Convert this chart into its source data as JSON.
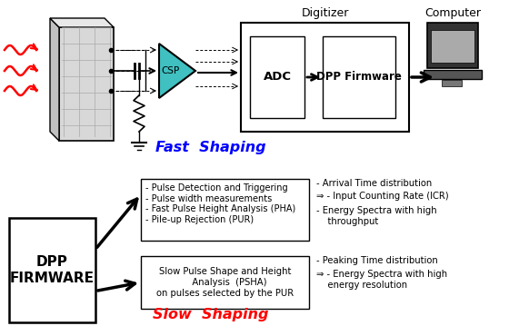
{
  "bg_color": "#ffffff",
  "digitizer_label": "Digitizer",
  "computer_label": "Computer",
  "adc_label": "ADC",
  "dpp_fw_label": "DPP Firmware",
  "csp_label": "CSP",
  "fast_shaping_label": "Fast  Shaping",
  "slow_shaping_label": "Slow  Shaping",
  "dpp_firmware_box_label": "DPP\nFIRMWARE",
  "fast_box_text": "- Pulse Detection and Triggering\n- Pulse width measurements\n- Fast Pulse Height Analysis (PHA)\n- Pile-up Rejection (PUR)",
  "slow_box_text": "Slow Pulse Shape and Height\n   Analysis  (PSHA)\non pulses selected by the PUR",
  "fast_right_line1": "- Arrival Time distribution",
  "fast_right_line2": "- Input Counting Rate (ICR)",
  "fast_right_line3": "- Energy Spectra with high",
  "fast_right_line4": "    throughput",
  "slow_right_line1": "- Peaking Time distribution",
  "slow_right_line2": "- Energy Spectra with high",
  "slow_right_line3": "    energy resolution"
}
